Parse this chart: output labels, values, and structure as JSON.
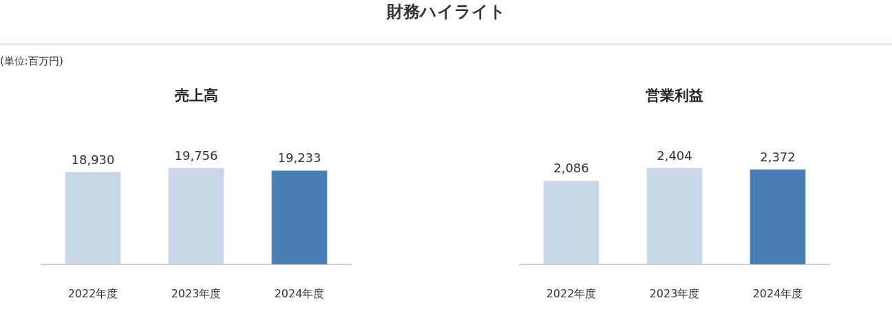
{
  "chart_data": [
    {
      "type": "bar",
      "title": "売上高",
      "annotations": [
        "財務ハイライト",
        "(単位:百万円)"
      ],
      "categories": [
        "2022年度",
        "2023年度",
        "2024年度"
      ],
      "values": [
        18930,
        19756,
        19233
      ],
      "value_labels": [
        "18,930",
        "19,756",
        "19,233"
      ],
      "colors": [
        "#c9d8e8",
        "#c9d8e8",
        "#4a7fb5"
      ],
      "grid": false,
      "legend": false,
      "tick_labels": "x"
    },
    {
      "type": "bar",
      "title": "営業利益",
      "categories": [
        "2022年度",
        "2023年度",
        "2024年度"
      ],
      "values": [
        2086,
        2404,
        2372
      ],
      "value_labels": [
        "2,086",
        "2,404",
        "2,372"
      ],
      "colors": [
        "#c9d8e8",
        "#c9d8e8",
        "#4a7fb5"
      ],
      "grid": false,
      "legend": false,
      "tick_labels": "x"
    }
  ]
}
